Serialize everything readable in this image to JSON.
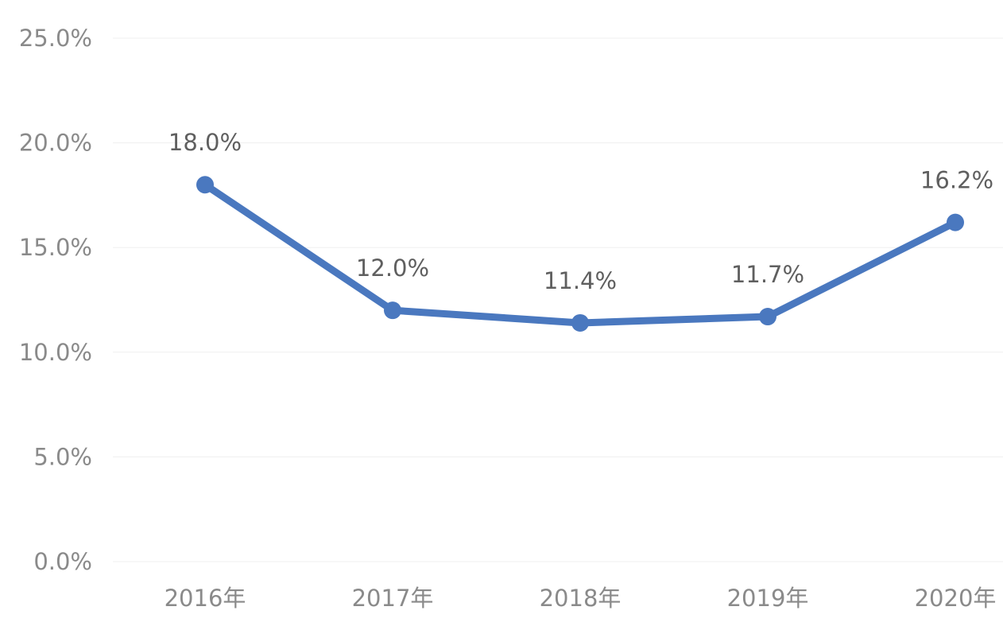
{
  "chart_data": {
    "type": "line",
    "categories": [
      "2016年",
      "2017年",
      "2018年",
      "2019年",
      "2020年"
    ],
    "series": [
      {
        "values": [
          18.0,
          12.0,
          11.4,
          11.7,
          16.2
        ],
        "color": "#4a78bf"
      }
    ],
    "data_labels": [
      "18.0%",
      "12.0%",
      "11.4%",
      "11.7%",
      "16.2%"
    ],
    "y_ticks": [
      0,
      5,
      10,
      15,
      20,
      25
    ],
    "y_tick_labels": [
      "0.0%",
      "5.0%",
      "10.0%",
      "15.0%",
      "20.0%",
      "25.0%"
    ],
    "ylim": [
      0,
      25
    ],
    "grid": true,
    "legend": "none",
    "title": "",
    "xlabel": "",
    "ylabel": ""
  }
}
